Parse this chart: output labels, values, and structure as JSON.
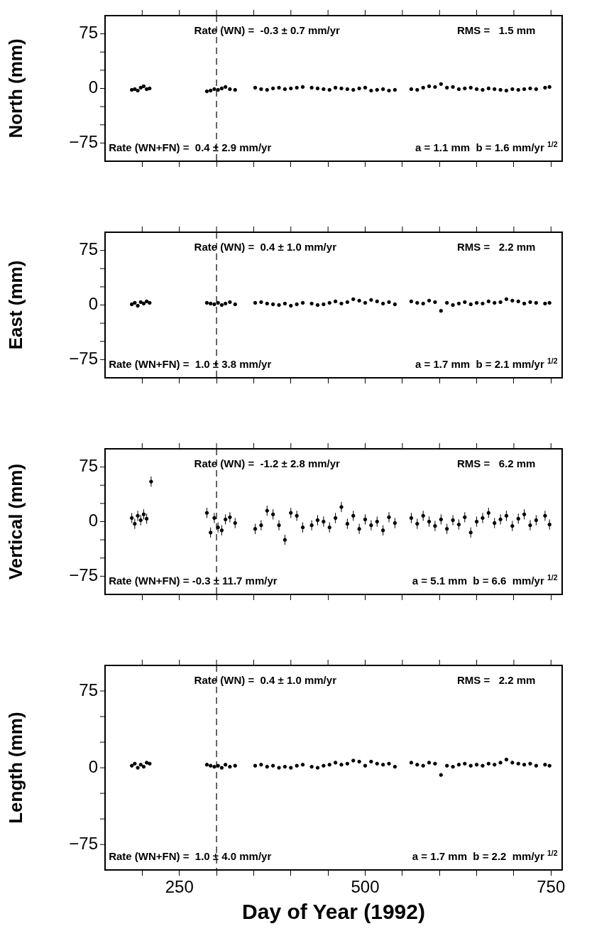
{
  "chart_data": [
    {
      "type": "scatter",
      "ylabel": "North (mm)",
      "xlim": [
        150,
        765
      ],
      "ylim": [
        -100,
        100
      ],
      "tick_labels": "y",
      "marker": "circle",
      "xticks": [
        {
          "value": 200,
          "label": null
        },
        250,
        {
          "value": 300,
          "label": null
        },
        {
          "value": 350,
          "label": null
        },
        {
          "value": 400,
          "label": null
        },
        {
          "value": 450,
          "label": null
        },
        500,
        {
          "value": 550,
          "label": null
        },
        {
          "value": 600,
          "label": null
        },
        {
          "value": 650,
          "label": null
        },
        {
          "value": 700,
          "label": null
        },
        750
      ],
      "yticks": [
        {
          "value": -75,
          "label": "−75"
        },
        {
          "value": -50,
          "label": null
        },
        {
          "value": -25,
          "label": null
        },
        {
          "value": 0,
          "label": "0"
        },
        {
          "value": 25,
          "label": null
        },
        {
          "value": 50,
          "label": null
        },
        {
          "value": 75,
          "label": "75"
        }
      ],
      "ref_lines": [
        {
          "axis": "x",
          "value": 300,
          "line_style": "dashed"
        }
      ],
      "annotations": [
        "Rate (WN) =  -0.3 ± 0.7 mm/yr",
        "RMS =   1.5 mm",
        "Rate (WN+FN) =  0.4 ± 2.9 mm/yr",
        "a = 1.1 mm  b = 1.6 mm/yr $^{1/2}$"
      ],
      "x": [
        186,
        190,
        194,
        198,
        202,
        206,
        210,
        287,
        292,
        297,
        302,
        307,
        312,
        318,
        325,
        352,
        360,
        368,
        376,
        384,
        392,
        400,
        408,
        416,
        428,
        436,
        444,
        452,
        460,
        468,
        476,
        484,
        492,
        500,
        508,
        516,
        524,
        532,
        540,
        562,
        570,
        578,
        586,
        594,
        602,
        610,
        618,
        626,
        634,
        642,
        650,
        658,
        666,
        674,
        682,
        690,
        698,
        706,
        714,
        722,
        730,
        742,
        748
      ],
      "series": [
        {
          "color": "#000000",
          "values": [
            -2,
            -1,
            -3,
            1,
            3,
            -1,
            0,
            -4,
            -3,
            -1,
            -2,
            0,
            2,
            -1,
            -2,
            1,
            -1,
            -2,
            0,
            1,
            -1,
            0,
            1,
            2,
            1,
            0,
            -1,
            -2,
            1,
            0,
            -1,
            -2,
            0,
            1,
            -3,
            -2,
            -1,
            -3,
            -2,
            -1,
            -2,
            1,
            3,
            2,
            6,
            1,
            2,
            -1,
            0,
            1,
            -1,
            -2,
            0,
            -1,
            -2,
            -3,
            -1,
            -2,
            -1,
            0,
            -1,
            1,
            2
          ]
        }
      ]
    },
    {
      "type": "scatter",
      "ylabel": "East (mm)",
      "xlim": [
        150,
        765
      ],
      "ylim": [
        -100,
        100
      ],
      "tick_labels": "y",
      "marker": "circle",
      "xticks": [
        {
          "value": 200,
          "label": null
        },
        250,
        {
          "value": 300,
          "label": null
        },
        {
          "value": 350,
          "label": null
        },
        {
          "value": 400,
          "label": null
        },
        {
          "value": 450,
          "label": null
        },
        500,
        {
          "value": 550,
          "label": null
        },
        {
          "value": 600,
          "label": null
        },
        {
          "value": 650,
          "label": null
        },
        {
          "value": 700,
          "label": null
        },
        750
      ],
      "yticks": [
        {
          "value": -75,
          "label": "−75"
        },
        {
          "value": -50,
          "label": null
        },
        {
          "value": -25,
          "label": null
        },
        {
          "value": 0,
          "label": "0"
        },
        {
          "value": 25,
          "label": null
        },
        {
          "value": 50,
          "label": null
        },
        {
          "value": 75,
          "label": "75"
        }
      ],
      "ref_lines": [
        {
          "axis": "x",
          "value": 300,
          "line_style": "dashed"
        }
      ],
      "annotations": [
        "Rate (WN) =  0.4 ± 1.0 mm/yr",
        "RMS =   2.2 mm",
        "Rate (WN+FN) =  1.0 ± 3.8 mm/yr",
        "a = 1.7 mm  b = 2.1 mm/yr $^{1/2}$"
      ],
      "x": [
        186,
        190,
        194,
        198,
        202,
        206,
        210,
        287,
        292,
        297,
        302,
        307,
        312,
        318,
        325,
        352,
        360,
        368,
        376,
        384,
        392,
        400,
        408,
        416,
        428,
        436,
        444,
        452,
        460,
        468,
        476,
        484,
        492,
        500,
        508,
        516,
        524,
        532,
        540,
        562,
        570,
        578,
        586,
        594,
        602,
        610,
        618,
        626,
        634,
        642,
        650,
        658,
        666,
        674,
        682,
        690,
        698,
        706,
        714,
        722,
        730,
        742,
        748
      ],
      "series": [
        {
          "color": "#000000",
          "values": [
            1,
            3,
            -1,
            4,
            2,
            5,
            3,
            3,
            2,
            1,
            3,
            0,
            2,
            4,
            1,
            3,
            4,
            2,
            1,
            0,
            2,
            -1,
            1,
            3,
            2,
            0,
            1,
            3,
            5,
            2,
            4,
            8,
            6,
            3,
            7,
            5,
            2,
            4,
            1,
            5,
            3,
            2,
            6,
            4,
            -8,
            3,
            0,
            2,
            4,
            1,
            3,
            2,
            5,
            3,
            4,
            8,
            6,
            5,
            2,
            4,
            3,
            2,
            3
          ]
        }
      ]
    },
    {
      "type": "scatter",
      "ylabel": "Vertical (mm)",
      "xlim": [
        150,
        765
      ],
      "ylim": [
        -100,
        100
      ],
      "tick_labels": "y",
      "marker": "circle",
      "xticks": [
        {
          "value": 200,
          "label": null
        },
        250,
        {
          "value": 300,
          "label": null
        },
        {
          "value": 350,
          "label": null
        },
        {
          "value": 400,
          "label": null
        },
        {
          "value": 450,
          "label": null
        },
        500,
        {
          "value": 550,
          "label": null
        },
        {
          "value": 600,
          "label": null
        },
        {
          "value": 650,
          "label": null
        },
        {
          "value": 700,
          "label": null
        },
        750
      ],
      "yticks": [
        {
          "value": -75,
          "label": "−75"
        },
        {
          "value": -50,
          "label": null
        },
        {
          "value": -25,
          "label": null
        },
        {
          "value": 0,
          "label": "0"
        },
        {
          "value": 25,
          "label": null
        },
        {
          "value": 50,
          "label": null
        },
        {
          "value": 75,
          "label": "75"
        }
      ],
      "ref_lines": [
        {
          "axis": "x",
          "value": 300,
          "line_style": "dashed"
        }
      ],
      "annotations": [
        "Rate (WN) =  -1.2 ± 2.8 mm/yr",
        "RMS =   6.2 mm",
        "Rate (WN+FN) = -0.3 ± 11.7 mm/yr",
        "a = 5.1 mm  b = 6.6  mm/yr $^{1/2}$"
      ],
      "x": [
        186,
        190,
        194,
        198,
        202,
        206,
        212,
        287,
        292,
        297,
        302,
        307,
        312,
        318,
        325,
        352,
        360,
        368,
        376,
        384,
        392,
        400,
        408,
        416,
        428,
        436,
        444,
        452,
        460,
        468,
        476,
        484,
        492,
        500,
        508,
        516,
        524,
        532,
        540,
        562,
        570,
        578,
        586,
        594,
        602,
        610,
        618,
        626,
        634,
        642,
        650,
        658,
        666,
        674,
        682,
        690,
        698,
        706,
        714,
        722,
        730,
        742,
        748
      ],
      "series": [
        {
          "color": "#000000",
          "values": [
            5,
            -3,
            8,
            2,
            10,
            4,
            55,
            12,
            -15,
            5,
            -8,
            -12,
            3,
            6,
            -2,
            -10,
            -5,
            15,
            10,
            -5,
            -25,
            12,
            8,
            -8,
            -5,
            2,
            0,
            -8,
            5,
            20,
            -3,
            8,
            -10,
            3,
            -5,
            0,
            -12,
            6,
            -2,
            5,
            -3,
            8,
            0,
            -6,
            3,
            -10,
            2,
            -4,
            6,
            -15,
            0,
            5,
            12,
            -2,
            3,
            8,
            -6,
            4,
            10,
            -5,
            2,
            8,
            -4
          ],
          "errors": [
            7,
            7,
            7,
            7,
            7,
            7,
            7,
            7,
            7,
            7,
            7,
            7,
            7,
            7,
            7,
            7,
            7,
            7,
            7,
            7,
            7,
            7,
            7,
            7,
            7,
            7,
            7,
            7,
            7,
            7,
            7,
            7,
            7,
            7,
            7,
            7,
            7,
            7,
            7,
            7,
            7,
            7,
            7,
            7,
            7,
            7,
            7,
            7,
            7,
            7,
            7,
            7,
            7,
            7,
            7,
            7,
            7,
            7,
            7,
            7,
            7,
            7,
            7
          ]
        }
      ]
    },
    {
      "type": "scatter",
      "ylabel": "Length (mm)",
      "xlabel": "Day of Year (1992)",
      "xlim": [
        150,
        765
      ],
      "ylim": [
        -100,
        100
      ],
      "marker": "circle",
      "xticks": [
        {
          "value": 200,
          "label": null
        },
        250,
        {
          "value": 300,
          "label": null
        },
        {
          "value": 350,
          "label": null
        },
        {
          "value": 400,
          "label": null
        },
        {
          "value": 450,
          "label": null
        },
        500,
        {
          "value": 550,
          "label": null
        },
        {
          "value": 600,
          "label": null
        },
        {
          "value": 650,
          "label": null
        },
        {
          "value": 700,
          "label": null
        },
        750
      ],
      "yticks": [
        {
          "value": -75,
          "label": "−75"
        },
        {
          "value": -50,
          "label": null
        },
        {
          "value": -25,
          "label": null
        },
        {
          "value": 0,
          "label": "0"
        },
        {
          "value": 25,
          "label": null
        },
        {
          "value": 50,
          "label": null
        },
        {
          "value": 75,
          "label": "75"
        }
      ],
      "ref_lines": [
        {
          "axis": "x",
          "value": 300,
          "line_style": "dashed"
        }
      ],
      "annotations": [
        "Rate (WN) =  0.4 ± 1.0 mm/yr",
        "RMS =   2.2 mm",
        "Rate (WN+FN) =  1.0 ± 4.0 mm/yr",
        "a = 1.7 mm  b = 2.2  mm/yr $^{1/2}$"
      ],
      "x": [
        186,
        190,
        194,
        198,
        202,
        206,
        210,
        287,
        292,
        297,
        302,
        307,
        312,
        318,
        325,
        352,
        360,
        368,
        376,
        384,
        392,
        400,
        408,
        416,
        428,
        436,
        444,
        452,
        460,
        468,
        476,
        484,
        492,
        500,
        508,
        516,
        524,
        532,
        540,
        562,
        570,
        578,
        586,
        594,
        602,
        610,
        618,
        626,
        634,
        642,
        650,
        658,
        666,
        674,
        682,
        690,
        698,
        706,
        714,
        722,
        730,
        742,
        748
      ],
      "series": [
        {
          "color": "#000000",
          "values": [
            2,
            4,
            0,
            3,
            1,
            5,
            4,
            3,
            2,
            1,
            2,
            0,
            3,
            1,
            2,
            2,
            3,
            1,
            2,
            0,
            1,
            0,
            2,
            3,
            1,
            0,
            2,
            3,
            5,
            3,
            4,
            7,
            6,
            2,
            6,
            4,
            3,
            4,
            1,
            5,
            3,
            2,
            5,
            4,
            -7,
            2,
            1,
            3,
            4,
            2,
            3,
            2,
            4,
            3,
            5,
            8,
            5,
            4,
            3,
            4,
            2,
            3,
            2
          ]
        }
      ]
    }
  ]
}
